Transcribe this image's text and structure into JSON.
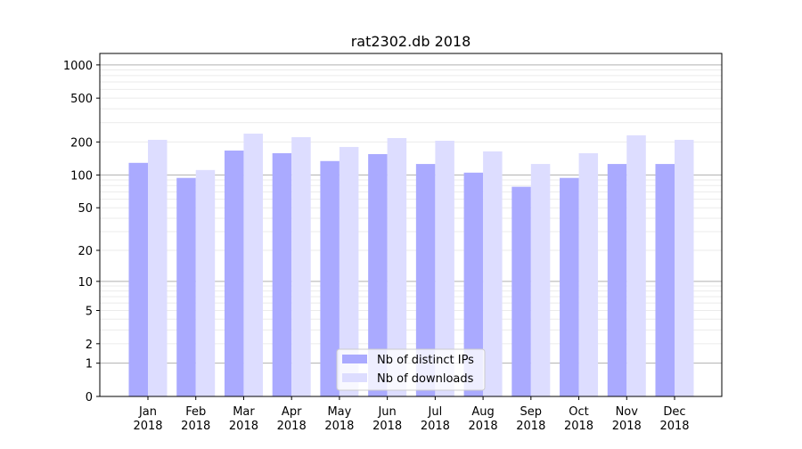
{
  "chart_data": {
    "type": "bar",
    "title": "rat2302.db 2018",
    "xlabel": "",
    "ylabel": "",
    "y_scale": "log(1+y)",
    "ylim": [
      0,
      1270
    ],
    "y_ticks": [
      0,
      1,
      2,
      5,
      10,
      20,
      50,
      100,
      200,
      500,
      1000
    ],
    "grid": "horizontal, major and minor",
    "legend_position": "lower center",
    "categories": [
      "Jan\n2018",
      "Feb\n2018",
      "Mar\n2018",
      "Apr\n2018",
      "May\n2018",
      "Jun\n2018",
      "Jul\n2018",
      "Aug\n2018",
      "Sep\n2018",
      "Oct\n2018",
      "Nov\n2018",
      "Dec\n2018"
    ],
    "series": [
      {
        "name": "Nb of distinct IPs",
        "color": "#aaaaff",
        "values": [
          129,
          94,
          167,
          158,
          134,
          155,
          126,
          105,
          78,
          94,
          126,
          126
        ]
      },
      {
        "name": "Nb of downloads",
        "color": "#ddddff",
        "values": [
          209,
          111,
          238,
          221,
          180,
          217,
          205,
          164,
          126,
          158,
          230,
          209
        ]
      }
    ]
  }
}
